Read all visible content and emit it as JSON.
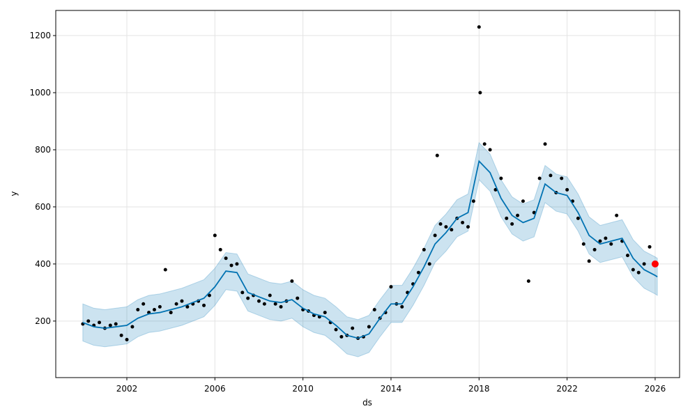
{
  "chart_data": {
    "type": "forecast",
    "xlabel": "ds",
    "ylabel": "y",
    "xlim": [
      1998.77,
      2027.11
    ],
    "ylim": [
      2,
      1288
    ],
    "xticks": [
      2002,
      2006,
      2010,
      2014,
      2018,
      2022,
      2026
    ],
    "yticks": [
      200,
      400,
      600,
      800,
      1000,
      1200
    ],
    "grid": true,
    "forecast_color": "#0072B2",
    "observed_color": "#000000",
    "highlight_color": "#ff0000",
    "x": [
      2000,
      2000.5,
      2001,
      2001.5,
      2002,
      2002.5,
      2003,
      2003.5,
      2004,
      2004.5,
      2005,
      2005.5,
      2006,
      2006.5,
      2007,
      2007.5,
      2008,
      2008.5,
      2009,
      2009.5,
      2010,
      2010.5,
      2011,
      2011.5,
      2012,
      2012.5,
      2013,
      2013.5,
      2014,
      2014.5,
      2015,
      2015.5,
      2016,
      2016.5,
      2017,
      2017.5,
      2018,
      2018.5,
      2019,
      2019.5,
      2020,
      2020.5,
      2021,
      2021.5,
      2022,
      2022.5,
      2023,
      2023.5,
      2024,
      2024.5,
      2025,
      2025.5,
      2026,
      2026.1
    ],
    "yhat": [
      195,
      180,
      175,
      180,
      185,
      210,
      225,
      230,
      240,
      250,
      265,
      280,
      320,
      375,
      370,
      300,
      285,
      270,
      265,
      275,
      245,
      225,
      215,
      185,
      150,
      140,
      155,
      210,
      260,
      260,
      320,
      390,
      470,
      510,
      560,
      580,
      760,
      720,
      630,
      570,
      545,
      560,
      680,
      650,
      640,
      580,
      500,
      470,
      480,
      490,
      420,
      380,
      360,
      355
    ],
    "yhat_lower": [
      130,
      115,
      110,
      115,
      120,
      145,
      160,
      165,
      175,
      185,
      200,
      215,
      255,
      310,
      305,
      235,
      220,
      205,
      200,
      210,
      180,
      160,
      150,
      120,
      85,
      75,
      90,
      145,
      195,
      195,
      255,
      325,
      405,
      445,
      495,
      515,
      695,
      655,
      565,
      505,
      480,
      495,
      615,
      585,
      575,
      515,
      435,
      405,
      415,
      425,
      355,
      315,
      295,
      290
    ],
    "yhat_upper": [
      260,
      245,
      240,
      245,
      250,
      275,
      290,
      295,
      305,
      315,
      330,
      345,
      385,
      440,
      435,
      365,
      350,
      335,
      330,
      340,
      310,
      290,
      280,
      250,
      215,
      205,
      220,
      275,
      325,
      325,
      385,
      455,
      535,
      575,
      625,
      645,
      825,
      785,
      695,
      635,
      610,
      625,
      745,
      715,
      705,
      645,
      565,
      535,
      545,
      555,
      485,
      445,
      425,
      420
    ],
    "observed": {
      "x": [
        2000,
        2000.25,
        2000.5,
        2000.75,
        2001,
        2001.25,
        2001.5,
        2001.75,
        2002,
        2002.25,
        2002.5,
        2002.75,
        2003,
        2003.25,
        2003.5,
        2003.75,
        2004,
        2004.25,
        2004.5,
        2004.75,
        2005,
        2005.25,
        2005.5,
        2005.75,
        2006,
        2006.25,
        2006.5,
        2006.75,
        2007,
        2007.25,
        2007.5,
        2007.75,
        2008,
        2008.25,
        2008.5,
        2008.75,
        2009,
        2009.25,
        2009.5,
        2009.75,
        2010,
        2010.25,
        2010.5,
        2010.75,
        2011,
        2011.25,
        2011.5,
        2011.75,
        2012,
        2012.25,
        2012.5,
        2012.75,
        2013,
        2013.25,
        2013.5,
        2013.75,
        2014,
        2014.25,
        2014.5,
        2014.75,
        2015,
        2015.25,
        2015.5,
        2015.75,
        2016,
        2016.1,
        2016.25,
        2016.5,
        2016.75,
        2017,
        2017.25,
        2017.5,
        2017.75,
        2018,
        2018.05,
        2018.25,
        2018.5,
        2018.75,
        2019,
        2019.25,
        2019.5,
        2019.75,
        2020,
        2020.25,
        2020.5,
        2020.75,
        2021,
        2021.25,
        2021.5,
        2021.75,
        2022,
        2022.25,
        2022.5,
        2022.75,
        2023,
        2023.25,
        2023.5,
        2023.75,
        2024,
        2024.25,
        2024.5,
        2024.75,
        2025,
        2025.25,
        2025.5,
        2025.75
      ],
      "values": [
        190,
        200,
        185,
        195,
        175,
        185,
        190,
        150,
        135,
        180,
        240,
        260,
        230,
        240,
        250,
        380,
        230,
        260,
        270,
        250,
        260,
        270,
        255,
        290,
        500,
        450,
        420,
        395,
        400,
        300,
        280,
        290,
        270,
        260,
        290,
        260,
        250,
        270,
        340,
        280,
        240,
        235,
        220,
        215,
        230,
        195,
        170,
        145,
        150,
        175,
        140,
        145,
        180,
        240,
        210,
        230,
        320,
        260,
        250,
        300,
        330,
        370,
        450,
        400,
        500,
        780,
        540,
        530,
        520,
        560,
        545,
        530,
        620,
        1230,
        1000,
        820,
        800,
        660,
        700,
        560,
        540,
        570,
        620,
        340,
        580,
        700,
        820,
        710,
        650,
        700,
        660,
        620,
        560,
        470,
        410,
        450,
        480,
        490,
        470,
        570,
        480,
        430,
        380,
        370,
        400,
        460
      ]
    },
    "highlight": {
      "x": [
        2026
      ],
      "values": [
        400
      ]
    }
  }
}
